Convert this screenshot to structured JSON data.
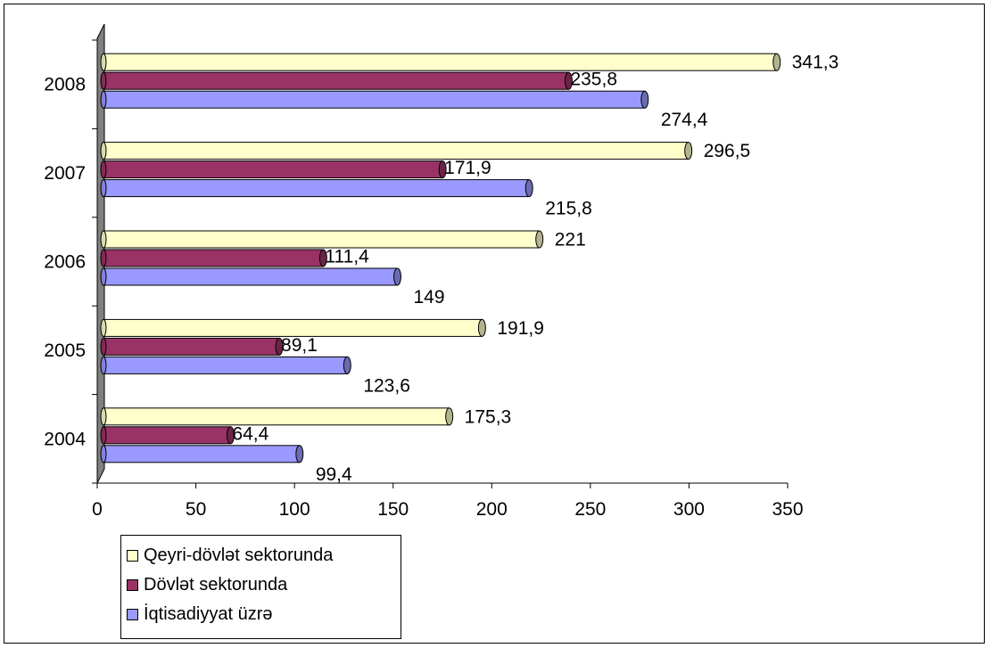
{
  "chart_data": {
    "type": "bar",
    "orientation": "horizontal",
    "three_d": true,
    "categories": [
      "2004",
      "2005",
      "2006",
      "2007",
      "2008"
    ],
    "series": [
      {
        "name": "Qeyri-dövlət sektorunda",
        "values": [
          175.3,
          191.9,
          221,
          296.5,
          341.3
        ],
        "labels": [
          "175,3",
          "191,9",
          "221",
          "296,5",
          "341,3"
        ],
        "color": "#ffffcc"
      },
      {
        "name": "Dövlət sektorunda",
        "values": [
          64.4,
          89.1,
          111.4,
          171.9,
          235.8
        ],
        "labels": [
          "64,4",
          "89,1",
          "111,4",
          "171,9",
          "235,8"
        ],
        "color": "#993366"
      },
      {
        "name": "İqtisadiyyat üzrə",
        "values": [
          99.4,
          123.6,
          149,
          215.8,
          274.4
        ],
        "labels": [
          "99,4",
          "123,6",
          "149",
          "215,8",
          "274,4"
        ],
        "color": "#9999ff"
      }
    ],
    "xlim": [
      0,
      350
    ],
    "xticks": [
      "0",
      "50",
      "100",
      "150",
      "200",
      "250",
      "300",
      "350"
    ],
    "legend_placement": "bottom-left",
    "grid": false
  }
}
